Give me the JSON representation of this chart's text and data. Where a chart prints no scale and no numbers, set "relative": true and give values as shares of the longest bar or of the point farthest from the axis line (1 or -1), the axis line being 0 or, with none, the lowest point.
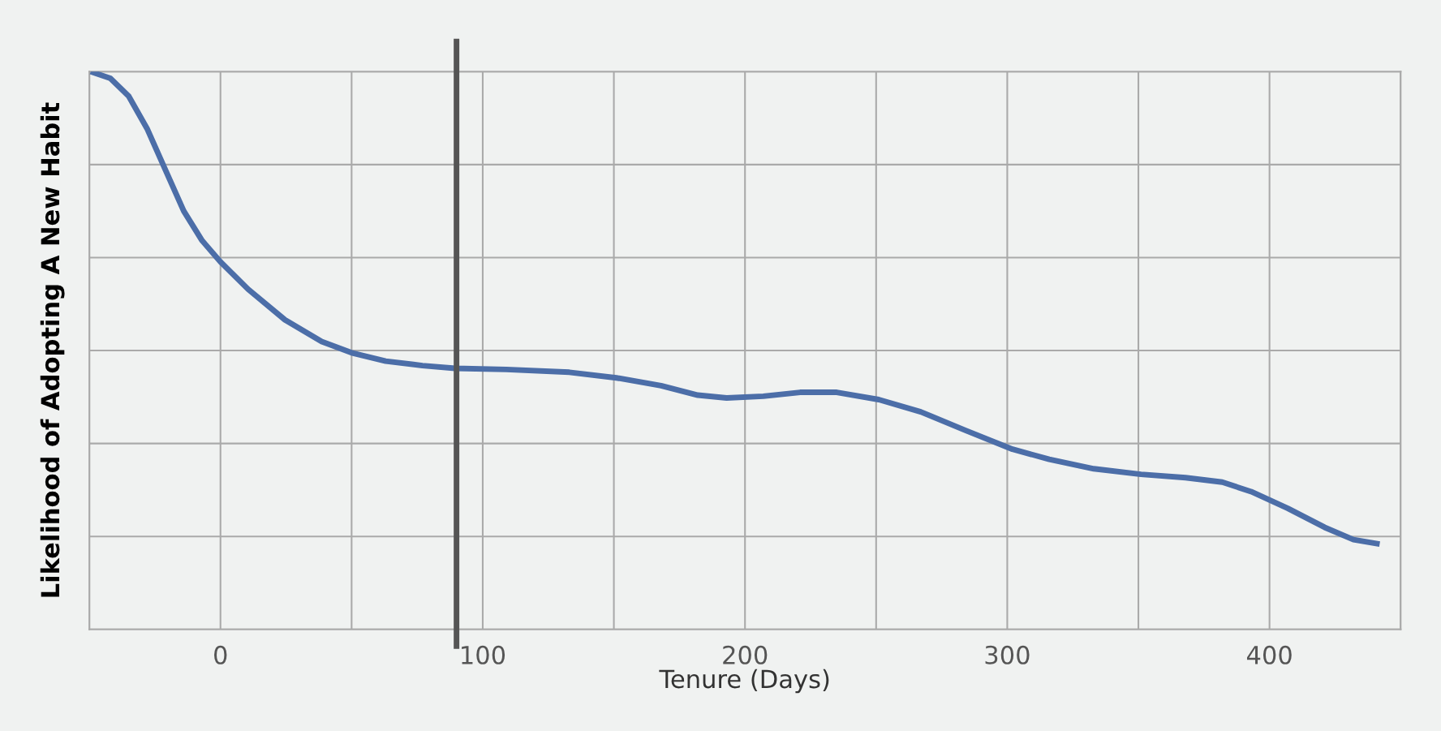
{
  "chart_data": {
    "type": "line",
    "xlabel": "Tenure (Days)",
    "ylabel": "Likelihood of Adopting A New Habit",
    "relative": true,
    "grid": true,
    "xlim": [
      -50,
      450
    ],
    "xticks": [
      0,
      100,
      200,
      300,
      400
    ],
    "x": [
      -49.5,
      -42,
      -35,
      -28,
      -21,
      -14,
      -7,
      0,
      10.5,
      24.6,
      38.6,
      50,
      63,
      77,
      89.5,
      109,
      133,
      151,
      168,
      182,
      193,
      207,
      221,
      235,
      251,
      267,
      284,
      302,
      316,
      333,
      351,
      368,
      382,
      393,
      407,
      421,
      432,
      442
    ],
    "series": [
      {
        "color": "#4c6ea8",
        "values": [
          1.0,
          0.988,
          0.956,
          0.898,
          0.824,
          0.75,
          0.697,
          0.659,
          0.61,
          0.555,
          0.516,
          0.496,
          0.481,
          0.473,
          0.468,
          0.466,
          0.461,
          0.451,
          0.437,
          0.42,
          0.415,
          0.418,
          0.425,
          0.425,
          0.412,
          0.39,
          0.357,
          0.323,
          0.305,
          0.288,
          0.278,
          0.272,
          0.264,
          0.247,
          0.217,
          0.183,
          0.161,
          0.153
        ]
      }
    ],
    "ref_lines": [
      {
        "axis": "x",
        "value": 90,
        "color": "#555555"
      }
    ]
  }
}
